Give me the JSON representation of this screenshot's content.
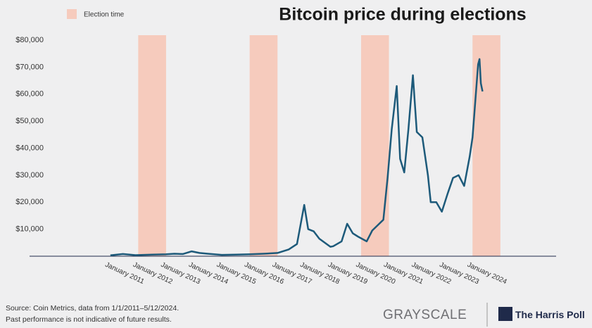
{
  "chart_data": {
    "type": "line",
    "title": "Bitcoin price during elections",
    "x": [
      2011.0,
      2011.45,
      2011.9,
      2012.5,
      2013.0,
      2013.3,
      2013.6,
      2013.92,
      2014.2,
      2014.5,
      2015.0,
      2015.5,
      2016.0,
      2016.5,
      2017.0,
      2017.4,
      2017.7,
      2017.96,
      2018.1,
      2018.3,
      2018.5,
      2018.9,
      2019.0,
      2019.3,
      2019.5,
      2019.7,
      2019.9,
      2020.2,
      2020.4,
      2020.6,
      2020.8,
      2020.95,
      2021.1,
      2021.28,
      2021.4,
      2021.55,
      2021.7,
      2021.86,
      2022.0,
      2022.2,
      2022.4,
      2022.5,
      2022.7,
      2022.9,
      2023.1,
      2023.3,
      2023.5,
      2023.7,
      2023.9,
      2024.0,
      2024.2,
      2024.25,
      2024.3,
      2024.36
    ],
    "values": [
      300,
      800,
      400,
      600,
      700,
      900,
      800,
      1800,
      1200,
      900,
      500,
      600,
      700,
      900,
      1200,
      2500,
      4500,
      19000,
      10000,
      9200,
      6500,
      3500,
      3700,
      5500,
      12000,
      8500,
      7200,
      5500,
      9500,
      11500,
      13500,
      29000,
      47000,
      63000,
      36000,
      31000,
      47000,
      67000,
      46000,
      44000,
      30000,
      20000,
      20000,
      16500,
      23000,
      29000,
      30000,
      26000,
      37000,
      44000,
      71000,
      73000,
      64000,
      61000
    ],
    "color": "#1d5a7a",
    "xlim": [
      2008.1,
      2027
    ],
    "xticks": [
      {
        "value": 2011,
        "label": "January 2011"
      },
      {
        "value": 2012,
        "label": "January 2012"
      },
      {
        "value": 2013,
        "label": "January 2013"
      },
      {
        "value": 2014,
        "label": "January 2014"
      },
      {
        "value": 2015,
        "label": "January 2015"
      },
      {
        "value": 2016,
        "label": "January 2016"
      },
      {
        "value": 2017,
        "label": "January 2017"
      },
      {
        "value": 2018,
        "label": "January 2018"
      },
      {
        "value": 2019,
        "label": "January 2019"
      },
      {
        "value": 2020,
        "label": "January 2020"
      },
      {
        "value": 2021,
        "label": "January 2021"
      },
      {
        "value": 2022,
        "label": "January 2022"
      },
      {
        "value": 2023,
        "label": "January 2023"
      },
      {
        "value": 2024,
        "label": "January 2024"
      }
    ],
    "ylim": [
      0,
      80000
    ],
    "yticks": [
      {
        "value": 0,
        "label": "–"
      },
      {
        "value": 10000,
        "label": "$10,000"
      },
      {
        "value": 20000,
        "label": "$20,000"
      },
      {
        "value": 30000,
        "label": "$30,000"
      },
      {
        "value": 40000,
        "label": "$40,000"
      },
      {
        "value": 50000,
        "label": "$50,000"
      },
      {
        "value": 60000,
        "label": "$60,000"
      },
      {
        "value": 70000,
        "label": "$70,000"
      },
      {
        "value": 80000,
        "label": "$80,000"
      }
    ],
    "highlight_label": "Election time",
    "highlight_color": "#f6cbbd",
    "highlight_ranges": [
      [
        2012,
        2013
      ],
      [
        2016,
        2017
      ],
      [
        2020,
        2021
      ],
      [
        2024,
        2025
      ]
    ],
    "source": "Source: Coin Metrics, data from 1/1/2011–5/12/2024.",
    "note": "Past performance is not indicative of future results.",
    "logos": [
      "GRAYSCALE",
      "The Harris Poll"
    ]
  }
}
